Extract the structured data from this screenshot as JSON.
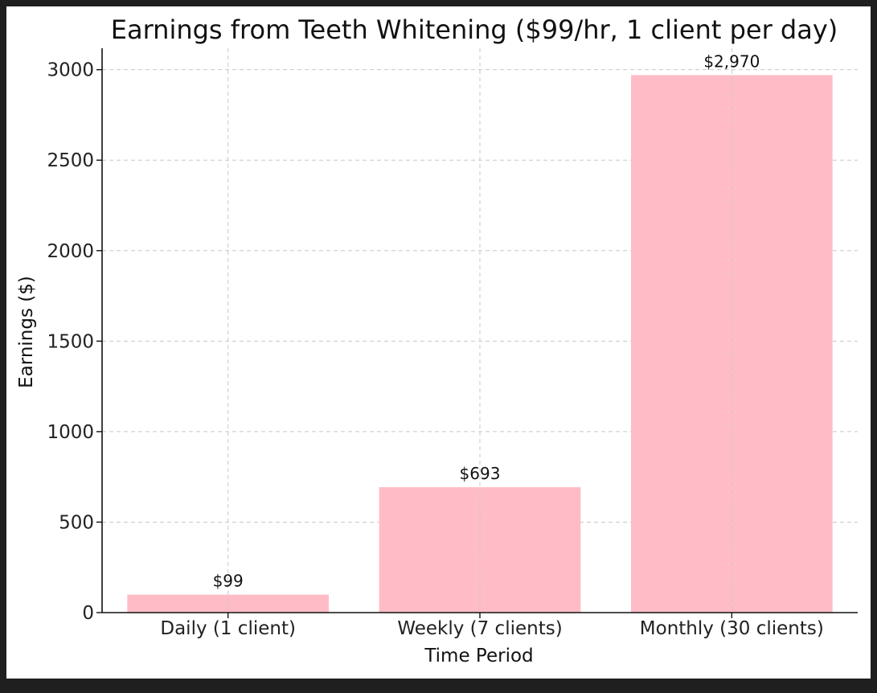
{
  "chart_data": {
    "type": "bar",
    "title": "Earnings from Teeth Whitening ($99/hr, 1 client per day)",
    "xlabel": "Time Period",
    "ylabel": "Earnings ($)",
    "categories": [
      "Daily (1 client)",
      "Weekly (7 clients)",
      "Monthly (30 clients)"
    ],
    "values": [
      99,
      693,
      2970
    ],
    "data_labels": [
      "$99",
      "$693",
      "$2,970"
    ],
    "ylim": [
      0,
      3118.5
    ],
    "yticks": [
      0,
      500,
      1000,
      1500,
      2000,
      2500,
      3000
    ],
    "grid": true,
    "bar_color": "#ffbcc6"
  }
}
